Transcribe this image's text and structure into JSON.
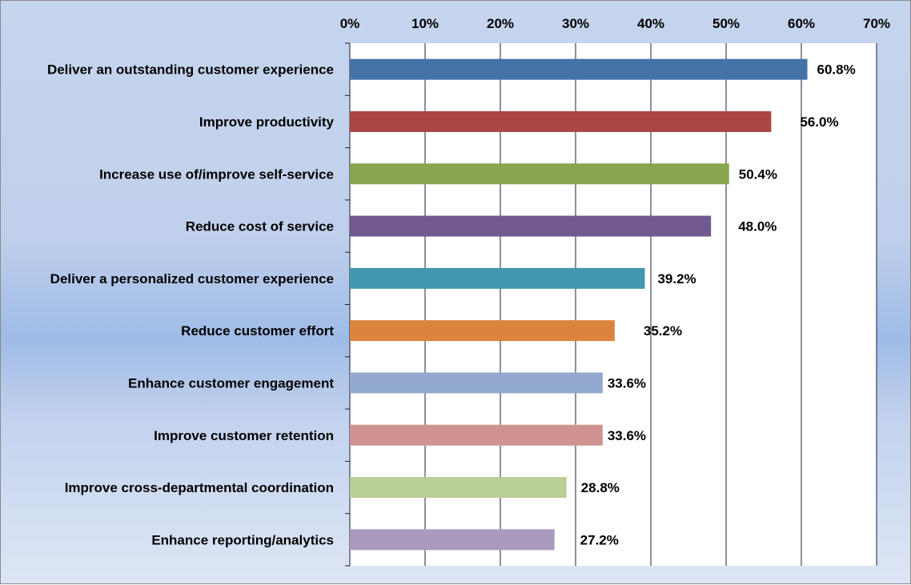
{
  "chart_data": {
    "type": "bar",
    "orientation": "horizontal",
    "title": "",
    "xlabel": "",
    "ylabel": "",
    "xlim": [
      0,
      70
    ],
    "x_ticks": [
      "0%",
      "10%",
      "20%",
      "30%",
      "40%",
      "50%",
      "60%",
      "70%"
    ],
    "axis_position": "top",
    "grid": true,
    "categories": [
      "Deliver an outstanding customer experience",
      "Improve productivity",
      "Increase use of/improve self-service",
      "Reduce cost of service",
      "Deliver a personalized customer experience",
      "Reduce customer effort",
      "Enhance customer engagement",
      "Improve customer retention",
      "Improve cross-departmental coordination",
      "Enhance reporting/analytics"
    ],
    "values": [
      60.8,
      56.0,
      50.4,
      48.0,
      39.2,
      35.2,
      33.6,
      33.6,
      28.8,
      27.2
    ],
    "data_labels": [
      "60.8%",
      "56.0%",
      "50.4%",
      "48.0%",
      "39.2%",
      "35.2%",
      "33.6%",
      "33.6%",
      "28.8%",
      "27.2%"
    ],
    "colors": [
      "#4572a7",
      "#aa4643",
      "#89a54e",
      "#71588f",
      "#4198af",
      "#db843d",
      "#93a9cf",
      "#d19392",
      "#b9cd96",
      "#a99bbd"
    ]
  }
}
